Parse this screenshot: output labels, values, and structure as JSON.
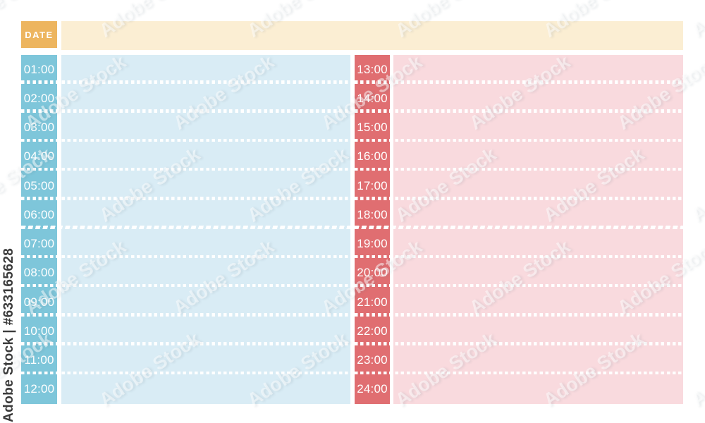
{
  "watermark": {
    "sidebar_text": "Adobe Stock | #633165628",
    "tile_text": "Adobe Stock"
  },
  "planner": {
    "date_label": "DATE",
    "left": {
      "hours": [
        "01:00",
        "02:00",
        "03:00",
        "04:00",
        "05:00",
        "06:00",
        "07:00",
        "08:00",
        "09:00",
        "10:00",
        "11:00",
        "12:00"
      ]
    },
    "right": {
      "hours": [
        "13:00",
        "14:00",
        "15:00",
        "16:00",
        "17:00",
        "18:00",
        "19:00",
        "20:00",
        "21:00",
        "22:00",
        "23:00",
        "24:00"
      ]
    },
    "colors": {
      "date_box": "#edb55f",
      "date_bar": "#fbeed3",
      "left_hour_column": "#7ec6da",
      "left_area": "#d9ecf5",
      "right_hour_column": "#e06e71",
      "right_area": "#f9dade",
      "separator_dots": "#ffffff"
    }
  }
}
